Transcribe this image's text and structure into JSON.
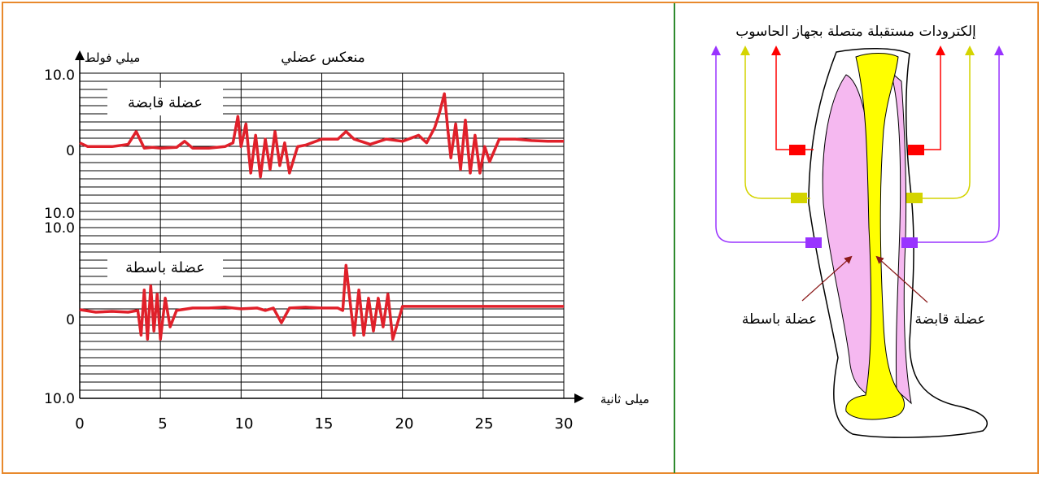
{
  "colors": {
    "frame": "#e8892c",
    "divider": "#2e8a2e",
    "trace": "#e0202a",
    "electrode_red": "#ff0000",
    "electrode_yellow": "#d4d400",
    "electrode_purple": "#9933ff",
    "muscle_pink": "#f5b8f0",
    "bone_yellow": "#ffff00"
  },
  "chart": {
    "title": "منعكس عضلي",
    "y_axis_label": "ميلي فولط",
    "x_axis_label": "ميلى ثانية",
    "y_ticks": [
      "10.0",
      "0",
      "10.0",
      "10.0",
      "0",
      "10.0"
    ],
    "x_ticks": [
      "0",
      "5",
      "10",
      "15",
      "20",
      "25",
      "30"
    ],
    "top_trace_label": "عضلة قابضة",
    "bottom_trace_label": "عضلة باسطة"
  },
  "chart_data": {
    "type": "line",
    "title": "منعكس عضلي",
    "xlabel": "ميلى ثانية",
    "ylabel": "ميلي فولط",
    "xlim": [
      0,
      30
    ],
    "series": [
      {
        "name": "عضلة قابضة",
        "ylim": [
          -10,
          10
        ],
        "x": [
          0,
          0.5,
          1,
          2,
          3,
          3.5,
          4,
          4.5,
          5,
          6,
          6.5,
          7,
          8,
          9,
          9.5,
          9.8,
          10,
          10.3,
          10.6,
          10.9,
          11.2,
          11.5,
          11.8,
          12.1,
          12.4,
          12.7,
          13,
          13.5,
          14,
          15,
          16,
          16.5,
          17,
          18,
          19,
          20,
          21,
          21.5,
          22,
          22.3,
          22.6,
          22.8,
          23,
          23.3,
          23.6,
          23.9,
          24.2,
          24.5,
          24.8,
          25.1,
          25.4,
          26,
          27,
          28,
          29,
          30
        ],
        "y": [
          1.0,
          0.5,
          0.5,
          0.5,
          0.8,
          2.5,
          0.3,
          0.4,
          0.3,
          0.4,
          1.2,
          0.3,
          0.3,
          0.5,
          1.0,
          4.5,
          0.5,
          3.5,
          -3.0,
          2.0,
          -3.5,
          1.5,
          -2.5,
          2.5,
          -2.0,
          1.0,
          -3.0,
          0.5,
          0.7,
          1.5,
          1.5,
          2.5,
          1.5,
          0.8,
          1.5,
          1.2,
          2.0,
          1.0,
          3.0,
          5.0,
          7.5,
          3.0,
          -1.0,
          3.5,
          -2.5,
          4.0,
          -3.0,
          2.0,
          -3.0,
          0.5,
          -1.5,
          1.5,
          1.5,
          1.3,
          1.2,
          1.2
        ]
      },
      {
        "name": "عضلة باسطة",
        "ylim": [
          -10,
          10
        ],
        "x": [
          0,
          1,
          2,
          3,
          3.6,
          3.8,
          4.0,
          4.2,
          4.4,
          4.6,
          4.8,
          5.0,
          5.3,
          5.6,
          6,
          7,
          8,
          9,
          10,
          11,
          11.5,
          12,
          12.5,
          13,
          14,
          15,
          16,
          16.3,
          16.5,
          16.8,
          17.0,
          17.3,
          17.6,
          17.9,
          18.2,
          18.5,
          18.8,
          19.1,
          19.4,
          20,
          22,
          24,
          26,
          28,
          30
        ],
        "y": [
          0.6,
          0.3,
          0.4,
          0.3,
          0.5,
          -2.5,
          3.0,
          -3.0,
          3.5,
          -2.0,
          2.5,
          -3.0,
          2.0,
          -1.5,
          0.5,
          0.8,
          0.8,
          0.9,
          0.7,
          0.8,
          0.5,
          0.8,
          -1.0,
          0.8,
          0.9,
          0.8,
          0.8,
          0.5,
          6.0,
          0.8,
          -2.5,
          3.0,
          -2.5,
          2.0,
          -2.0,
          2.0,
          -1.5,
          2.5,
          -3.0,
          1.0,
          1.0,
          1.0,
          1.0,
          1.0,
          1.0
        ]
      }
    ]
  },
  "diagram": {
    "title": "إلكترودات مستقبلة متصلة بجهاز الحاسوب",
    "flexor_label": "عضلة قابضة",
    "extensor_label": "عضلة باسطة"
  }
}
